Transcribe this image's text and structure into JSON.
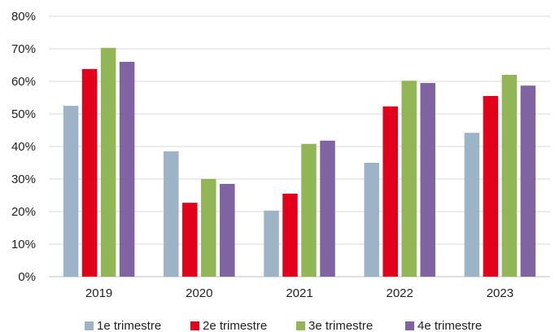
{
  "chart_data": {
    "type": "bar",
    "title": "",
    "xlabel": "",
    "ylabel": "",
    "categories": [
      "2019",
      "2020",
      "2021",
      "2022",
      "2023"
    ],
    "ylim": [
      0,
      80
    ],
    "yticks": [
      0,
      10,
      20,
      30,
      40,
      50,
      60,
      70,
      80
    ],
    "ytick_labels": [
      "0%",
      "10%",
      "20%",
      "30%",
      "40%",
      "50%",
      "60%",
      "70%",
      "80%"
    ],
    "grid": "horizontal",
    "legend_position": "bottom",
    "series": [
      {
        "name": "1e trimestre",
        "color": "#9db3c6",
        "values": [
          52.5,
          38.5,
          20.3,
          35.0,
          44.2
        ]
      },
      {
        "name": "2e trimestre",
        "color": "#e2001a",
        "values": [
          63.8,
          22.7,
          25.5,
          52.3,
          55.5
        ]
      },
      {
        "name": "3e trimestre",
        "color": "#92b556",
        "values": [
          70.3,
          30.0,
          40.8,
          60.2,
          62.0
        ]
      },
      {
        "name": "4e trimestre",
        "color": "#8064a2",
        "values": [
          66.0,
          28.5,
          41.8,
          59.5,
          58.7
        ]
      }
    ]
  }
}
